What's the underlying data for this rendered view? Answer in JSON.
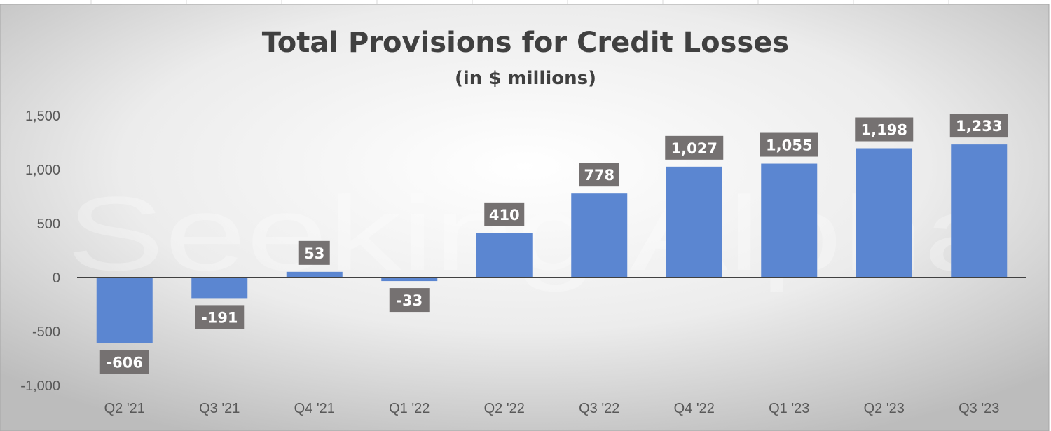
{
  "chart_data": {
    "type": "bar",
    "title": "Total Provisions for Credit Losses",
    "subtitle": "(in $ millions)",
    "categories": [
      "Q2 '21",
      "Q3 '21",
      "Q4 '21",
      "Q1 '22",
      "Q2 '22",
      "Q3 '22",
      "Q4 '22",
      "Q1 '23",
      "Q2 '23",
      "Q3 '23"
    ],
    "values": [
      -606,
      -191,
      53,
      -33,
      410,
      778,
      1027,
      1055,
      1198,
      1233
    ],
    "data_labels": [
      "-606",
      "-191",
      "53",
      "-33",
      "410",
      "778",
      "1,027",
      "1,055",
      "1,198",
      "1,233"
    ],
    "ylim": [
      -1000,
      1500
    ],
    "yticks": [
      -1000,
      -500,
      0,
      500,
      1000,
      1500
    ],
    "ytick_labels": [
      "-1,000",
      "-500",
      "0",
      "500",
      "1,000",
      "1,500"
    ],
    "xlabel": "",
    "ylabel": "",
    "grid": false,
    "legend": "none",
    "colors": {
      "bar": "#5b86d1",
      "label_bg": "#757171",
      "label_text": "#ffffff",
      "axis": "#404040",
      "title": "#404040",
      "tick_text": "#595959"
    },
    "watermark": "Seeking Alpha"
  }
}
